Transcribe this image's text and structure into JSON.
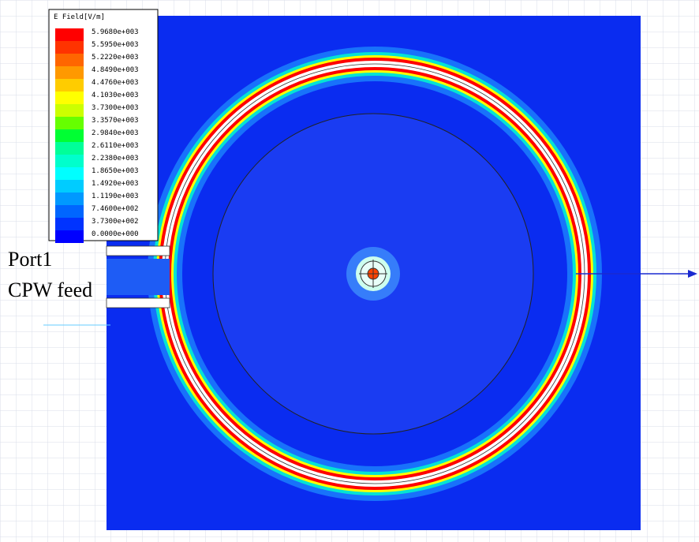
{
  "legend": {
    "title": "E Field[V/m]",
    "entries": [
      {
        "label": "5.9680e+003",
        "color": "#ff0000"
      },
      {
        "label": "5.5950e+003",
        "color": "#ff3300"
      },
      {
        "label": "5.2220e+003",
        "color": "#ff6600"
      },
      {
        "label": "4.8490e+003",
        "color": "#ff9900"
      },
      {
        "label": "4.4760e+003",
        "color": "#ffcc00"
      },
      {
        "label": "4.1030e+003",
        "color": "#ffff00"
      },
      {
        "label": "3.7300e+003",
        "color": "#ccff00"
      },
      {
        "label": "3.3570e+003",
        "color": "#66ff00"
      },
      {
        "label": "2.9840e+003",
        "color": "#00ff33"
      },
      {
        "label": "2.6110e+003",
        "color": "#00ff99"
      },
      {
        "label": "2.2380e+003",
        "color": "#00ffcc"
      },
      {
        "label": "1.8650e+003",
        "color": "#00ffff"
      },
      {
        "label": "1.4920e+003",
        "color": "#00ccff"
      },
      {
        "label": "1.1190e+003",
        "color": "#0099ff"
      },
      {
        "label": "7.4600e+002",
        "color": "#0066ff"
      },
      {
        "label": "3.7300e+002",
        "color": "#0033ff"
      },
      {
        "label": "0.0000e+000",
        "color": "#0000ff"
      }
    ]
  },
  "annotations": {
    "port": "Port1",
    "feed": "CPW feed"
  }
}
